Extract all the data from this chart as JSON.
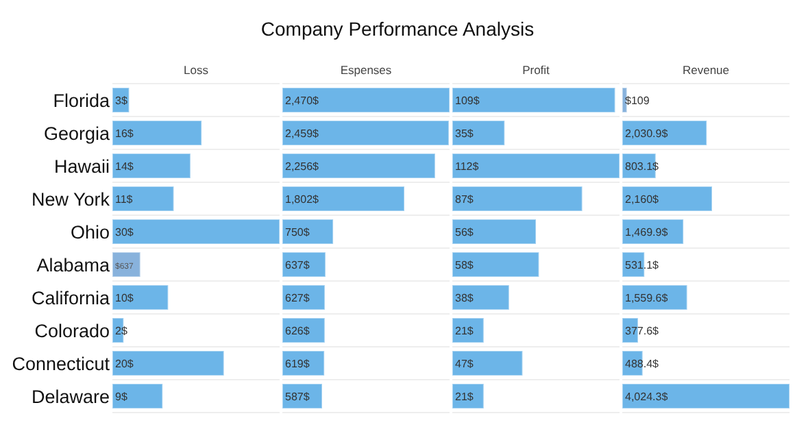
{
  "chart_data": [
    {
      "type": "other",
      "title": "Company Performance Analysis"
    },
    {
      "type": "bar",
      "xlabel": "Loss",
      "orientation": "horizontal",
      "categories": [
        "Florida",
        "Georgia",
        "Hawaii",
        "New York",
        "Ohio",
        "Alabama",
        "California",
        "Colorado",
        "Connecticut",
        "Delaware"
      ],
      "values": [
        3,
        16,
        14,
        11,
        30,
        5,
        10,
        2,
        20,
        9
      ],
      "value_labels": [
        "3$",
        "16$",
        "14$",
        "11$",
        "30$",
        null,
        "10$",
        "2$",
        "20$",
        "9$"
      ],
      "annotations": [
        {
          "text": "$637",
          "y": "Alabama"
        }
      ],
      "colors": [
        "#6cb5e8",
        "#6cb5e8",
        "#6cb5e8",
        "#6cb5e8",
        "#6cb5e8",
        "#88b2dc",
        "#6cb5e8",
        "#6cb5e8",
        "#6cb5e8",
        "#6cb5e8"
      ],
      "grid": "y"
    },
    {
      "type": "bar",
      "xlabel": "Espenses",
      "orientation": "horizontal",
      "tick_labels": false,
      "categories": [
        "Florida",
        "Georgia",
        "Hawaii",
        "New York",
        "Ohio",
        "Alabama",
        "California",
        "Colorado",
        "Connecticut",
        "Delaware"
      ],
      "values": [
        2470,
        2459,
        2256,
        1802,
        750,
        637,
        627,
        626,
        619,
        587
      ],
      "value_labels": [
        "2,470$",
        "2,459$",
        "2,256$",
        "1,802$",
        "750$",
        "637$",
        "627$",
        "626$",
        "619$",
        "587$"
      ],
      "color": "#6cb5e8",
      "grid": "y"
    },
    {
      "type": "bar",
      "xlabel": "Profit",
      "orientation": "horizontal",
      "tick_labels": false,
      "categories": [
        "Florida",
        "Georgia",
        "Hawaii",
        "New York",
        "Ohio",
        "Alabama",
        "California",
        "Colorado",
        "Connecticut",
        "Delaware"
      ],
      "values": [
        109,
        35,
        112,
        87,
        56,
        58,
        38,
        21,
        47,
        21
      ],
      "value_labels": [
        "109$",
        "35$",
        "112$",
        "87$",
        "56$",
        "58$",
        "38$",
        "21$",
        "47$",
        "21$"
      ],
      "color": "#6cb5e8",
      "grid": "y"
    },
    {
      "type": "bar",
      "xlabel": "Revenue",
      "orientation": "horizontal",
      "tick_labels": false,
      "categories": [
        "Florida",
        "Georgia",
        "Hawaii",
        "New York",
        "Ohio",
        "Alabama",
        "California",
        "Colorado",
        "Connecticut",
        "Delaware"
      ],
      "values": [
        109,
        2030.9,
        803.1,
        2160,
        1469.9,
        531.1,
        1559.6,
        377.6,
        488.4,
        4024.3
      ],
      "value_labels": [
        "$109",
        "2,030.9$",
        "803.1$",
        "2,160$",
        "1,469.9$",
        "531.1$",
        "1,559.6$",
        "377.6$",
        "488.4$",
        "4,024.3$"
      ],
      "colors": [
        "#88b2dc",
        "#6cb5e8",
        "#6cb5e8",
        "#6cb5e8",
        "#6cb5e8",
        "#6cb5e8",
        "#6cb5e8",
        "#6cb5e8",
        "#6cb5e8",
        "#6cb5e8"
      ],
      "grid": "y"
    }
  ]
}
